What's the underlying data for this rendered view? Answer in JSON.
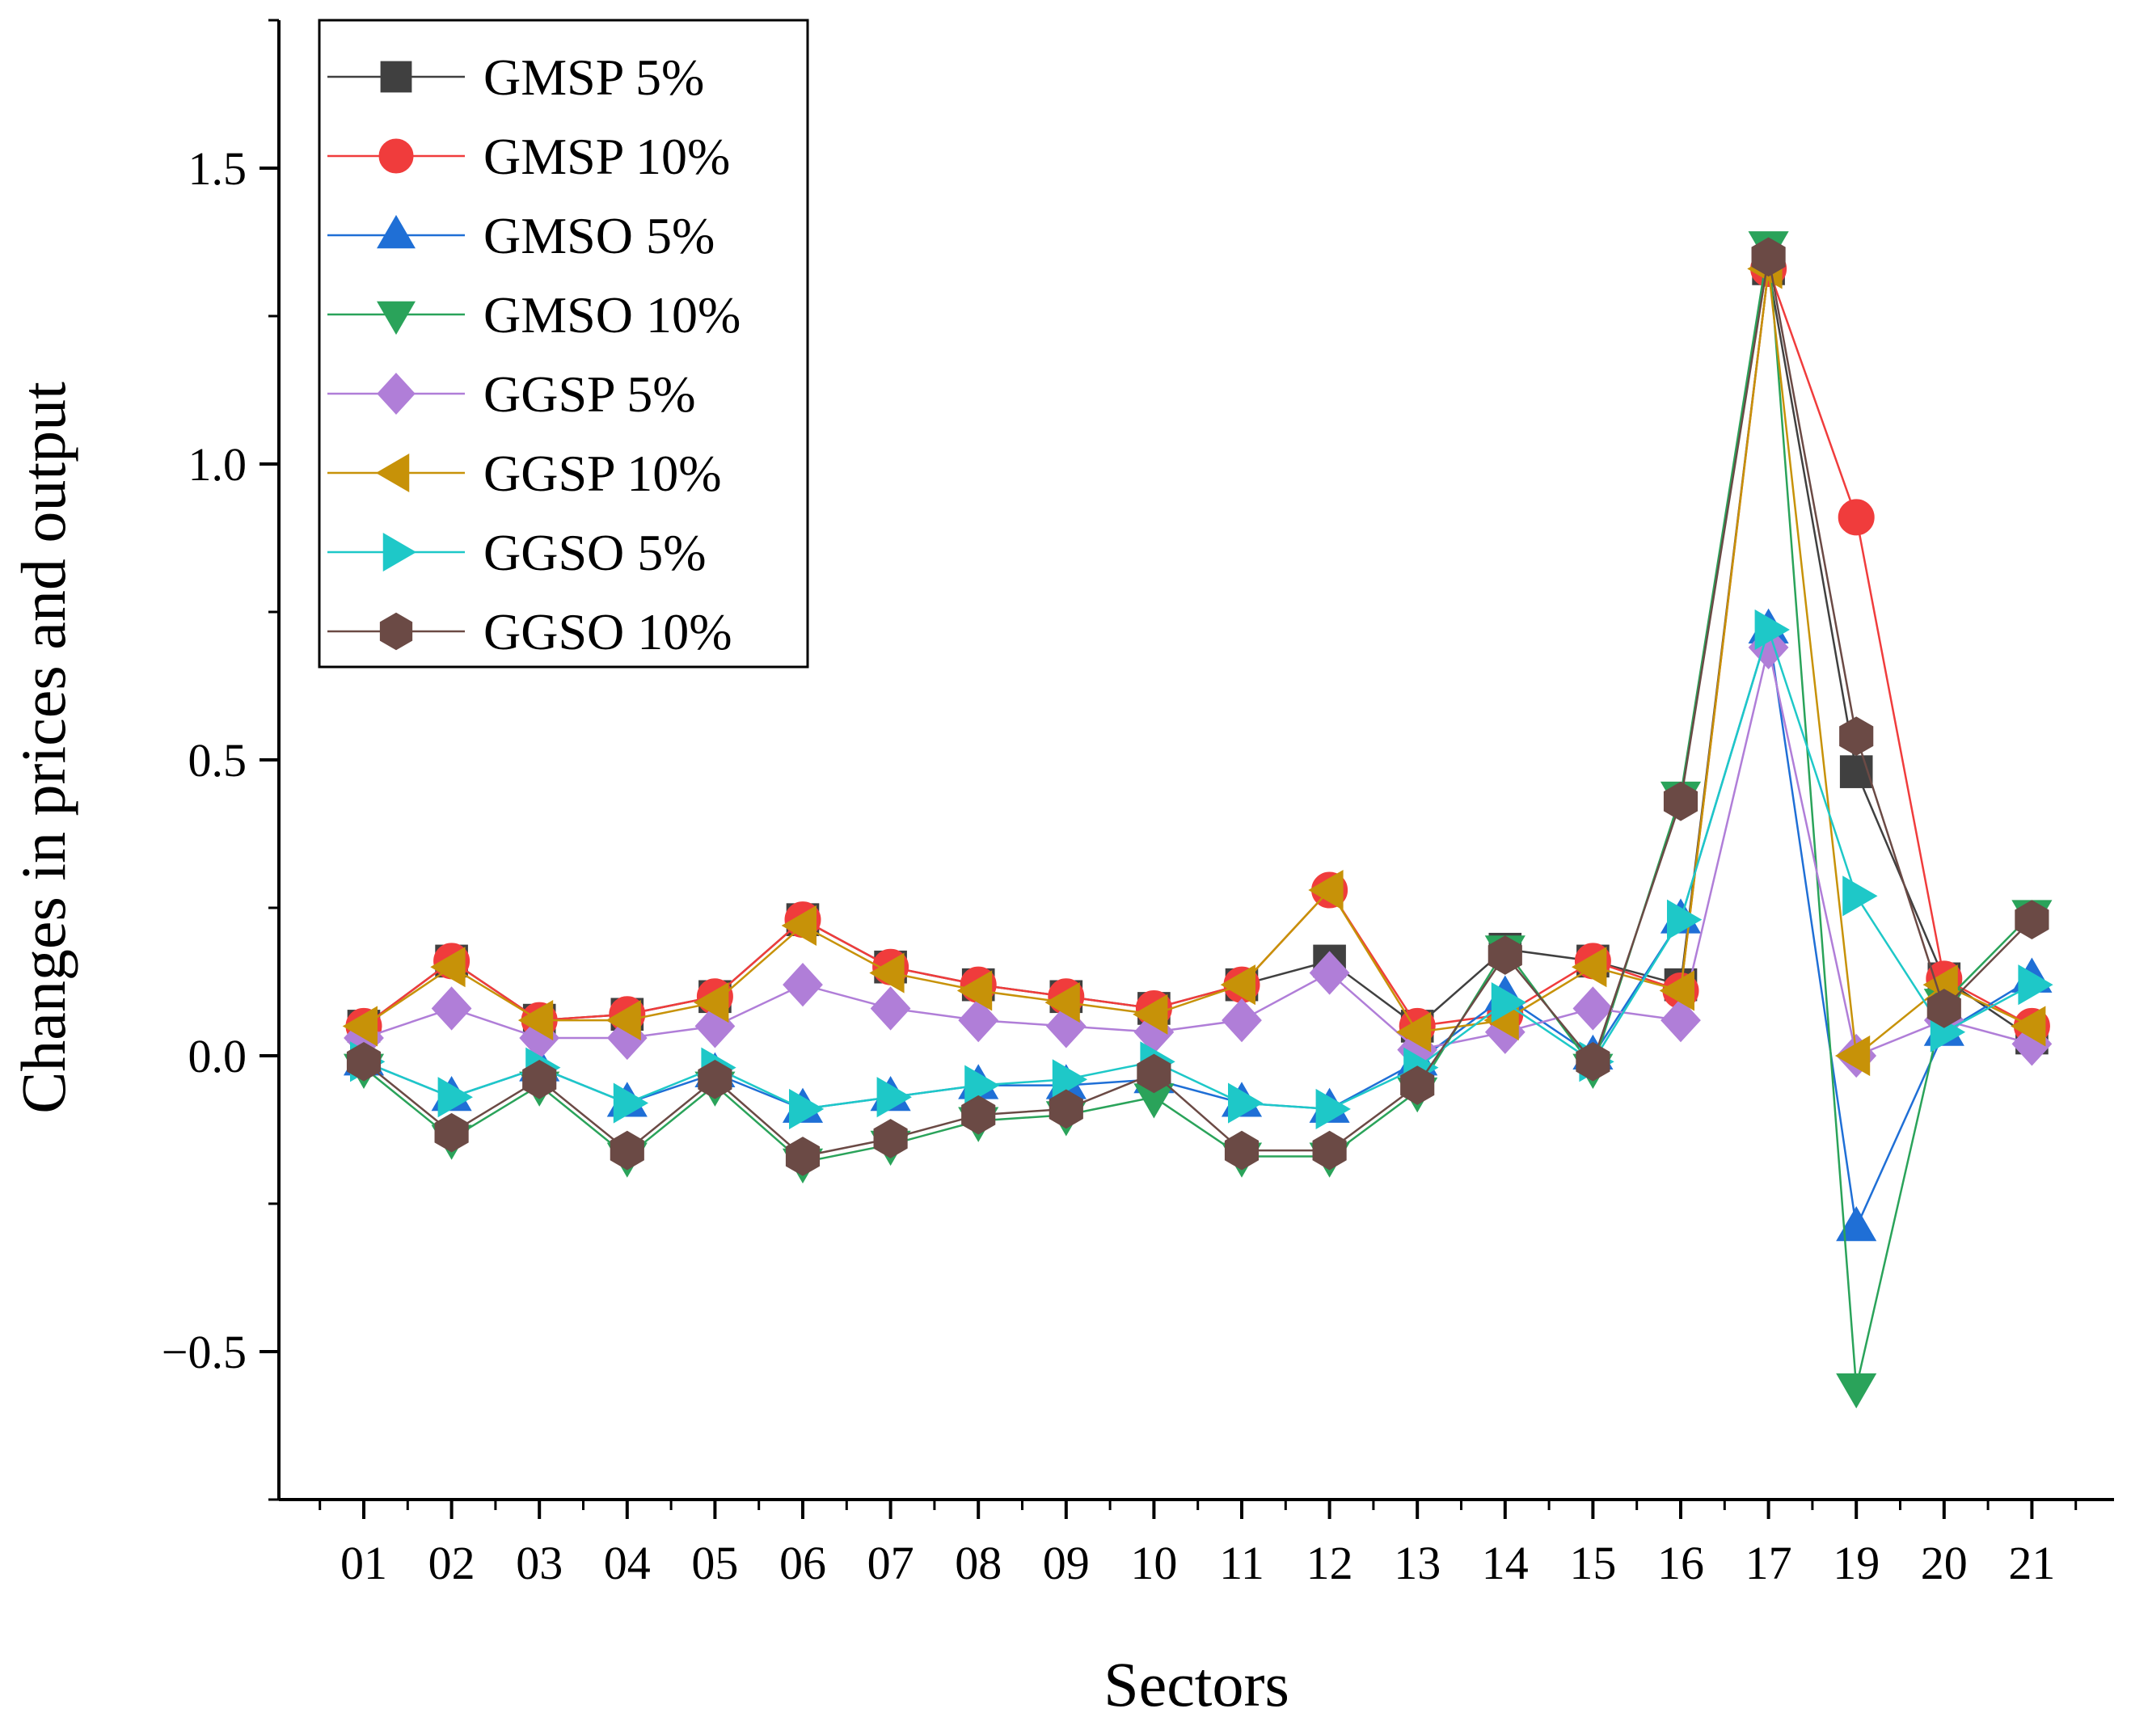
{
  "chart_data": {
    "type": "line",
    "xlabel": "Sectors",
    "ylabel": "Changes in prices and output",
    "ylim": [
      -0.75,
      1.75
    ],
    "yticks": [
      -0.5,
      0.0,
      0.5,
      1.0,
      1.5
    ],
    "ytick_labels": [
      "−0.5",
      "0.0",
      "0.5",
      "1.0",
      "1.5"
    ],
    "categories": [
      "01",
      "02",
      "03",
      "04",
      "05",
      "06",
      "07",
      "08",
      "09",
      "10",
      "11",
      "12",
      "13",
      "14",
      "15",
      "16",
      "17",
      "19",
      "20",
      "21"
    ],
    "legend_position": "top-left",
    "series": [
      {
        "name": "GMSP 5%",
        "color": "#404040",
        "marker": "square",
        "values": [
          0.05,
          0.16,
          0.06,
          0.07,
          0.1,
          0.23,
          0.15,
          0.12,
          0.1,
          0.08,
          0.12,
          0.16,
          0.05,
          0.18,
          0.16,
          0.12,
          1.33,
          0.48,
          0.13,
          0.03
        ]
      },
      {
        "name": "GMSP 10%",
        "color": "#f03c3c",
        "marker": "circle",
        "values": [
          0.05,
          0.16,
          0.06,
          0.07,
          0.1,
          0.23,
          0.15,
          0.12,
          0.1,
          0.08,
          0.12,
          0.28,
          0.05,
          0.07,
          0.16,
          0.11,
          1.33,
          0.91,
          0.13,
          0.05
        ]
      },
      {
        "name": "GMSO 5%",
        "color": "#1f6fd6",
        "marker": "triangle-up",
        "values": [
          -0.01,
          -0.07,
          -0.02,
          -0.08,
          -0.03,
          -0.09,
          -0.07,
          -0.05,
          -0.05,
          -0.04,
          -0.08,
          -0.09,
          -0.01,
          0.1,
          0.0,
          0.23,
          0.72,
          -0.29,
          0.04,
          0.13
        ]
      },
      {
        "name": "GMSO 10%",
        "color": "#2aa35a",
        "marker": "triangle-down",
        "values": [
          -0.02,
          -0.14,
          -0.05,
          -0.17,
          -0.05,
          -0.18,
          -0.15,
          -0.11,
          -0.1,
          -0.07,
          -0.17,
          -0.17,
          -0.06,
          0.18,
          -0.02,
          0.44,
          1.37,
          -0.56,
          0.09,
          0.24
        ]
      },
      {
        "name": "GGSP 5%",
        "color": "#b07ed8",
        "marker": "diamond",
        "values": [
          0.03,
          0.08,
          0.03,
          0.03,
          0.05,
          0.12,
          0.08,
          0.06,
          0.05,
          0.04,
          0.06,
          0.14,
          0.01,
          0.04,
          0.08,
          0.06,
          0.69,
          0.0,
          0.06,
          0.02
        ]
      },
      {
        "name": "GGSP 10%",
        "color": "#c79208",
        "marker": "triangle-left",
        "values": [
          0.05,
          0.15,
          0.06,
          0.06,
          0.09,
          0.22,
          0.14,
          0.11,
          0.09,
          0.07,
          0.12,
          0.28,
          0.04,
          0.06,
          0.15,
          0.11,
          1.33,
          0.0,
          0.12,
          0.05
        ]
      },
      {
        "name": "GGSO 5%",
        "color": "#1ec8c8",
        "marker": "triangle-right",
        "values": [
          -0.01,
          -0.07,
          -0.02,
          -0.08,
          -0.02,
          -0.09,
          -0.07,
          -0.05,
          -0.04,
          -0.01,
          -0.08,
          -0.09,
          -0.02,
          0.09,
          -0.01,
          0.23,
          0.72,
          0.27,
          0.04,
          0.12
        ]
      },
      {
        "name": "GGSO 10%",
        "color": "#6b4a45",
        "marker": "hexagon",
        "values": [
          -0.01,
          -0.13,
          -0.04,
          -0.16,
          -0.04,
          -0.17,
          -0.14,
          -0.1,
          -0.09,
          -0.03,
          -0.16,
          -0.16,
          -0.05,
          0.17,
          -0.01,
          0.43,
          1.35,
          0.54,
          0.08,
          0.23
        ]
      }
    ]
  }
}
